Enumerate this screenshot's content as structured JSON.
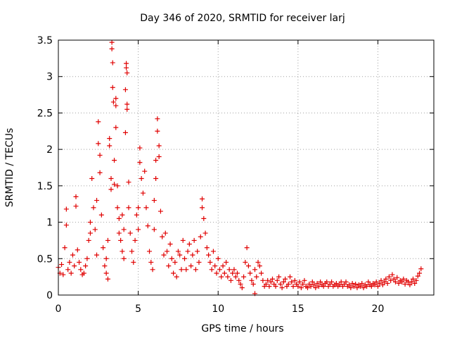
{
  "chart_data": {
    "type": "scatter",
    "title": "Day 346 of 2020, SRMTID for receiver larj",
    "xlabel": "GPS time / hours",
    "ylabel": "SRMTID / TECUs",
    "xlim": [
      0,
      23.5
    ],
    "ylim": [
      0,
      3.5
    ],
    "x_ticks": [
      0,
      5,
      10,
      15,
      20
    ],
    "x_tick_labels": [
      "0",
      "5",
      "10",
      "15",
      "20"
    ],
    "y_ticks": [
      0,
      0.5,
      1,
      1.5,
      2,
      2.5,
      3,
      3.5
    ],
    "y_tick_labels": [
      "0",
      "0.5",
      "1",
      "1.5",
      "2",
      "2.5",
      "3",
      "3.5"
    ],
    "grid": true,
    "marker": "+",
    "series": [
      {
        "name": "SRMTID",
        "color": "#e00000",
        "points": [
          [
            0.0,
            0.38
          ],
          [
            0.1,
            0.3
          ],
          [
            0.2,
            0.42
          ],
          [
            0.3,
            0.28
          ],
          [
            0.4,
            0.65
          ],
          [
            0.5,
            0.96
          ],
          [
            0.5,
            1.18
          ],
          [
            0.6,
            0.35
          ],
          [
            0.7,
            0.45
          ],
          [
            0.8,
            0.3
          ],
          [
            0.9,
            0.55
          ],
          [
            1.0,
            0.4
          ],
          [
            1.1,
            1.35
          ],
          [
            1.1,
            1.22
          ],
          [
            1.2,
            0.62
          ],
          [
            1.3,
            0.45
          ],
          [
            1.4,
            0.35
          ],
          [
            1.5,
            0.28
          ],
          [
            1.6,
            0.3
          ],
          [
            1.7,
            0.4
          ],
          [
            1.8,
            0.5
          ],
          [
            1.9,
            0.75
          ],
          [
            2.0,
            1.0
          ],
          [
            2.0,
            0.85
          ],
          [
            2.1,
            1.6
          ],
          [
            2.2,
            1.2
          ],
          [
            2.3,
            0.9
          ],
          [
            2.4,
            1.3
          ],
          [
            2.4,
            0.55
          ],
          [
            2.5,
            2.38
          ],
          [
            2.5,
            2.08
          ],
          [
            2.6,
            1.92
          ],
          [
            2.6,
            1.68
          ],
          [
            2.7,
            1.1
          ],
          [
            2.8,
            0.65
          ],
          [
            2.9,
            0.4
          ],
          [
            3.0,
            0.3
          ],
          [
            3.0,
            0.5
          ],
          [
            3.1,
            0.75
          ],
          [
            3.1,
            0.22
          ],
          [
            3.2,
            2.15
          ],
          [
            3.2,
            2.05
          ],
          [
            3.3,
            1.6
          ],
          [
            3.3,
            1.45
          ],
          [
            3.35,
            3.47
          ],
          [
            3.35,
            3.38
          ],
          [
            3.4,
            3.19
          ],
          [
            3.4,
            2.85
          ],
          [
            3.45,
            2.65
          ],
          [
            3.5,
            1.85
          ],
          [
            3.5,
            1.52
          ],
          [
            3.6,
            2.7
          ],
          [
            3.6,
            2.6
          ],
          [
            3.6,
            2.3
          ],
          [
            3.7,
            1.5
          ],
          [
            3.7,
            1.2
          ],
          [
            3.8,
            1.05
          ],
          [
            3.8,
            0.85
          ],
          [
            3.9,
            0.75
          ],
          [
            4.0,
            0.6
          ],
          [
            4.0,
            1.1
          ],
          [
            4.1,
            0.5
          ],
          [
            4.1,
            0.9
          ],
          [
            4.2,
            2.82
          ],
          [
            4.2,
            2.23
          ],
          [
            4.25,
            3.18
          ],
          [
            4.25,
            3.12
          ],
          [
            4.3,
            3.05
          ],
          [
            4.3,
            2.62
          ],
          [
            4.3,
            2.55
          ],
          [
            4.4,
            1.55
          ],
          [
            4.4,
            1.2
          ],
          [
            4.5,
            0.85
          ],
          [
            4.6,
            0.6
          ],
          [
            4.7,
            0.45
          ],
          [
            4.8,
            0.75
          ],
          [
            4.9,
            1.1
          ],
          [
            5.0,
            1.2
          ],
          [
            5.0,
            0.9
          ],
          [
            5.1,
            1.82
          ],
          [
            5.1,
            2.02
          ],
          [
            5.2,
            1.6
          ],
          [
            5.3,
            1.4
          ],
          [
            5.4,
            1.7
          ],
          [
            5.5,
            1.2
          ],
          [
            5.6,
            0.95
          ],
          [
            5.7,
            0.6
          ],
          [
            5.8,
            0.45
          ],
          [
            5.9,
            0.35
          ],
          [
            6.0,
            0.9
          ],
          [
            6.0,
            1.3
          ],
          [
            6.1,
            1.85
          ],
          [
            6.1,
            1.6
          ],
          [
            6.2,
            2.42
          ],
          [
            6.2,
            2.25
          ],
          [
            6.3,
            2.05
          ],
          [
            6.3,
            1.9
          ],
          [
            6.4,
            1.15
          ],
          [
            6.5,
            0.8
          ],
          [
            6.6,
            0.55
          ],
          [
            6.7,
            0.85
          ],
          [
            6.8,
            0.6
          ],
          [
            6.9,
            0.4
          ],
          [
            7.0,
            0.7
          ],
          [
            7.1,
            0.5
          ],
          [
            7.2,
            0.3
          ],
          [
            7.3,
            0.45
          ],
          [
            7.4,
            0.25
          ],
          [
            7.5,
            0.6
          ],
          [
            7.6,
            0.55
          ],
          [
            7.7,
            0.35
          ],
          [
            7.8,
            0.75
          ],
          [
            7.9,
            0.5
          ],
          [
            8.0,
            0.35
          ],
          [
            8.1,
            0.6
          ],
          [
            8.2,
            0.7
          ],
          [
            8.3,
            0.4
          ],
          [
            8.4,
            0.55
          ],
          [
            8.5,
            0.75
          ],
          [
            8.6,
            0.35
          ],
          [
            8.7,
            0.6
          ],
          [
            8.8,
            0.45
          ],
          [
            8.9,
            0.8
          ],
          [
            9.0,
            1.32
          ],
          [
            9.0,
            1.2
          ],
          [
            9.1,
            1.05
          ],
          [
            9.2,
            0.85
          ],
          [
            9.3,
            0.65
          ],
          [
            9.4,
            0.55
          ],
          [
            9.5,
            0.45
          ],
          [
            9.6,
            0.35
          ],
          [
            9.7,
            0.6
          ],
          [
            9.8,
            0.4
          ],
          [
            9.9,
            0.3
          ],
          [
            10.0,
            0.5
          ],
          [
            10.1,
            0.35
          ],
          [
            10.2,
            0.25
          ],
          [
            10.3,
            0.4
          ],
          [
            10.4,
            0.3
          ],
          [
            10.5,
            0.45
          ],
          [
            10.6,
            0.25
          ],
          [
            10.7,
            0.35
          ],
          [
            10.8,
            0.2
          ],
          [
            10.9,
            0.3
          ],
          [
            11.0,
            0.35
          ],
          [
            11.1,
            0.25
          ],
          [
            11.2,
            0.3
          ],
          [
            11.3,
            0.2
          ],
          [
            11.4,
            0.15
          ],
          [
            11.5,
            0.1
          ],
          [
            11.6,
            0.25
          ],
          [
            11.7,
            0.45
          ],
          [
            11.8,
            0.65
          ],
          [
            11.9,
            0.4
          ],
          [
            12.0,
            0.3
          ],
          [
            12.1,
            0.2
          ],
          [
            12.2,
            0.15
          ],
          [
            12.3,
            0.35
          ],
          [
            12.3,
            0.02
          ],
          [
            12.4,
            0.25
          ],
          [
            12.5,
            0.45
          ],
          [
            12.6,
            0.4
          ],
          [
            12.7,
            0.3
          ],
          [
            12.8,
            0.2
          ],
          [
            12.9,
            0.12
          ],
          [
            13.0,
            0.15
          ],
          [
            13.1,
            0.2
          ],
          [
            13.2,
            0.12
          ],
          [
            13.3,
            0.18
          ],
          [
            13.4,
            0.22
          ],
          [
            13.5,
            0.15
          ],
          [
            13.6,
            0.12
          ],
          [
            13.7,
            0.2
          ],
          [
            13.8,
            0.25
          ],
          [
            13.9,
            0.15
          ],
          [
            14.0,
            0.1
          ],
          [
            14.1,
            0.18
          ],
          [
            14.2,
            0.22
          ],
          [
            14.3,
            0.12
          ],
          [
            14.4,
            0.15
          ],
          [
            14.5,
            0.25
          ],
          [
            14.6,
            0.18
          ],
          [
            14.7,
            0.12
          ],
          [
            14.8,
            0.2
          ],
          [
            14.9,
            0.15
          ],
          [
            15.0,
            0.12
          ],
          [
            15.1,
            0.18
          ],
          [
            15.2,
            0.1
          ],
          [
            15.3,
            0.15
          ],
          [
            15.4,
            0.2
          ],
          [
            15.5,
            0.12
          ],
          [
            15.6,
            0.1
          ],
          [
            15.7,
            0.15
          ],
          [
            15.8,
            0.12
          ],
          [
            15.9,
            0.18
          ],
          [
            16.0,
            0.14
          ],
          [
            16.1,
            0.1
          ],
          [
            16.2,
            0.16
          ],
          [
            16.3,
            0.12
          ],
          [
            16.4,
            0.18
          ],
          [
            16.5,
            0.14
          ],
          [
            16.6,
            0.12
          ],
          [
            16.7,
            0.16
          ],
          [
            16.8,
            0.18
          ],
          [
            16.9,
            0.12
          ],
          [
            17.0,
            0.15
          ],
          [
            17.1,
            0.18
          ],
          [
            17.2,
            0.12
          ],
          [
            17.3,
            0.14
          ],
          [
            17.4,
            0.16
          ],
          [
            17.5,
            0.12
          ],
          [
            17.6,
            0.14
          ],
          [
            17.7,
            0.18
          ],
          [
            17.8,
            0.12
          ],
          [
            17.9,
            0.15
          ],
          [
            18.0,
            0.18
          ],
          [
            18.1,
            0.12
          ],
          [
            18.2,
            0.14
          ],
          [
            18.3,
            0.1
          ],
          [
            18.4,
            0.16
          ],
          [
            18.5,
            0.12
          ],
          [
            18.6,
            0.15
          ],
          [
            18.7,
            0.1
          ],
          [
            18.8,
            0.14
          ],
          [
            18.9,
            0.12
          ],
          [
            19.0,
            0.16
          ],
          [
            19.1,
            0.1
          ],
          [
            19.2,
            0.14
          ],
          [
            19.3,
            0.12
          ],
          [
            19.4,
            0.18
          ],
          [
            19.5,
            0.14
          ],
          [
            19.6,
            0.12
          ],
          [
            19.7,
            0.16
          ],
          [
            19.8,
            0.14
          ],
          [
            19.9,
            0.18
          ],
          [
            20.0,
            0.12
          ],
          [
            20.1,
            0.16
          ],
          [
            20.2,
            0.2
          ],
          [
            20.3,
            0.14
          ],
          [
            20.4,
            0.18
          ],
          [
            20.5,
            0.22
          ],
          [
            20.6,
            0.16
          ],
          [
            20.7,
            0.25
          ],
          [
            20.8,
            0.2
          ],
          [
            20.9,
            0.28
          ],
          [
            21.0,
            0.22
          ],
          [
            21.1,
            0.18
          ],
          [
            21.2,
            0.24
          ],
          [
            21.3,
            0.16
          ],
          [
            21.4,
            0.2
          ],
          [
            21.5,
            0.18
          ],
          [
            21.6,
            0.22
          ],
          [
            21.7,
            0.15
          ],
          [
            21.8,
            0.2
          ],
          [
            21.9,
            0.18
          ],
          [
            22.0,
            0.14
          ],
          [
            22.1,
            0.18
          ],
          [
            22.2,
            0.22
          ],
          [
            22.3,
            0.16
          ],
          [
            22.4,
            0.2
          ],
          [
            22.5,
            0.26
          ],
          [
            22.6,
            0.3
          ],
          [
            22.7,
            0.36
          ]
        ]
      }
    ]
  }
}
